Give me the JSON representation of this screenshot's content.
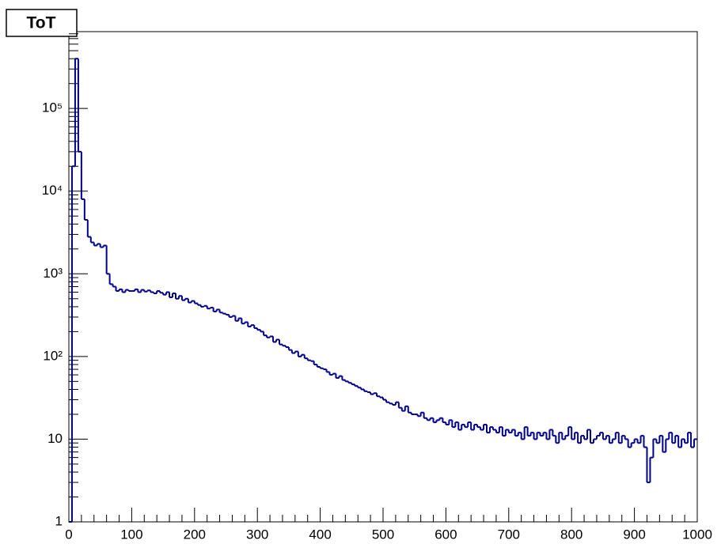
{
  "chart_data": {
    "type": "histogram",
    "title": "ToT",
    "bins": [
      0,
      5,
      10,
      15,
      20,
      25,
      30,
      35,
      40,
      45,
      50,
      55,
      60,
      65,
      70,
      75,
      80,
      85,
      90,
      95,
      100,
      105,
      110,
      115,
      120,
      125,
      130,
      135,
      140,
      145,
      150,
      155,
      160,
      165,
      170,
      175,
      180,
      185,
      190,
      195,
      200,
      205,
      210,
      215,
      220,
      225,
      230,
      235,
      240,
      245,
      250,
      255,
      260,
      265,
      270,
      275,
      280,
      285,
      290,
      295,
      300,
      305,
      310,
      315,
      320,
      325,
      330,
      335,
      340,
      345,
      350,
      355,
      360,
      365,
      370,
      375,
      380,
      385,
      390,
      395,
      400,
      405,
      410,
      415,
      420,
      425,
      430,
      435,
      440,
      445,
      450,
      455,
      460,
      465,
      470,
      475,
      480,
      485,
      490,
      495,
      500,
      505,
      510,
      515,
      520,
      525,
      530,
      535,
      540,
      545,
      550,
      555,
      560,
      565,
      570,
      575,
      580,
      585,
      590,
      595,
      600,
      605,
      610,
      615,
      620,
      625,
      630,
      635,
      640,
      645,
      650,
      655,
      660,
      665,
      670,
      675,
      680,
      685,
      690,
      695,
      700,
      705,
      710,
      715,
      720,
      725,
      730,
      735,
      740,
      745,
      750,
      755,
      760,
      765,
      770,
      775,
      780,
      785,
      790,
      795,
      800,
      805,
      810,
      815,
      820,
      825,
      830,
      835,
      840,
      845,
      850,
      855,
      860,
      865,
      870,
      875,
      880,
      885,
      890,
      895,
      900,
      905,
      910,
      915,
      920,
      925,
      930,
      935,
      940,
      945,
      950,
      955,
      960,
      965,
      970,
      975,
      980,
      985,
      990,
      995,
      1000
    ],
    "values": [
      1,
      20000,
      400000,
      30000,
      8000,
      4500,
      2800,
      2400,
      2200,
      2300,
      2100,
      2200,
      1000,
      750,
      700,
      620,
      650,
      600,
      640,
      620,
      620,
      650,
      600,
      640,
      610,
      630,
      600,
      580,
      620,
      590,
      560,
      600,
      520,
      580,
      500,
      540,
      480,
      500,
      450,
      470,
      440,
      420,
      400,
      410,
      380,
      390,
      350,
      370,
      340,
      330,
      320,
      300,
      310,
      270,
      290,
      250,
      260,
      230,
      240,
      220,
      210,
      200,
      180,
      170,
      175,
      150,
      160,
      140,
      135,
      130,
      120,
      110,
      115,
      100,
      105,
      95,
      90,
      88,
      80,
      75,
      72,
      70,
      65,
      60,
      62,
      55,
      58,
      52,
      50,
      48,
      46,
      44,
      42,
      40,
      38,
      37,
      35,
      36,
      33,
      32,
      30,
      28,
      27,
      26,
      28,
      24,
      22,
      25,
      21,
      20,
      20,
      19,
      21,
      18,
      17,
      18,
      16,
      17,
      18,
      16,
      15,
      17,
      14,
      16,
      13,
      15,
      14,
      16,
      13,
      15,
      14,
      13,
      15,
      12,
      14,
      13,
      12,
      14,
      11,
      13,
      12,
      13,
      11,
      12,
      10,
      14,
      11,
      12,
      10,
      12,
      11,
      12,
      10,
      13,
      11,
      9,
      12,
      10,
      11,
      14,
      10,
      12,
      9,
      11,
      10,
      13,
      9,
      10,
      11,
      12,
      10,
      11,
      9,
      10,
      12,
      9,
      11,
      10,
      8,
      9,
      10,
      9,
      11,
      8,
      3,
      6,
      10,
      9,
      11,
      7,
      10,
      12,
      9,
      11,
      8,
      10,
      9,
      12,
      8,
      10
    ],
    "color": "#00008b",
    "xlim": [
      0,
      1000
    ],
    "xticks": [
      0,
      100,
      200,
      300,
      400,
      500,
      600,
      700,
      800,
      900,
      1000
    ],
    "ylim": [
      1,
      850000
    ],
    "ylog": true,
    "yticks": [
      1,
      10,
      {
        "value": 100,
        "label": "10²"
      },
      {
        "value": 1000,
        "label": "10³"
      },
      {
        "value": 10000,
        "label": "10⁴"
      },
      {
        "value": 100000,
        "label": "10⁵"
      }
    ]
  }
}
